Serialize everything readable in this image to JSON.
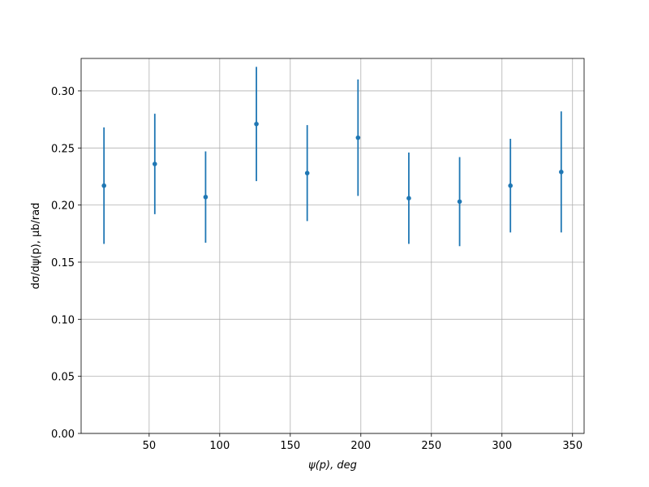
{
  "chart_data": {
    "type": "errorbar",
    "xlabel": "ψ(p), deg",
    "ylabel": "dσ/dψ(p), μb/rad",
    "x": [
      18,
      54,
      90,
      126,
      162,
      198,
      234,
      270,
      306,
      342
    ],
    "series": [
      {
        "color": "#1f77b4",
        "values": [
          0.217,
          0.236,
          0.207,
          0.271,
          0.228,
          0.259,
          0.206,
          0.203,
          0.217,
          0.229
        ],
        "errors": [
          0.051,
          0.044,
          0.04,
          0.05,
          0.042,
          0.051,
          0.04,
          0.039,
          0.041,
          0.053
        ]
      }
    ],
    "xlim": [
      1.8,
      358.2
    ],
    "xticks": [
      50,
      100,
      150,
      200,
      250,
      300,
      350
    ],
    "ylim": [
      0,
      0.3284
    ],
    "yticks": [
      {
        "value": 0,
        "label": "0.00"
      },
      {
        "value": 0.05,
        "label": "0.05"
      },
      {
        "value": 0.1,
        "label": "0.10"
      },
      {
        "value": 0.15,
        "label": "0.15"
      },
      {
        "value": 0.2,
        "label": "0.20"
      },
      {
        "value": 0.25,
        "label": "0.25"
      },
      {
        "value": 0.3,
        "label": "0.30"
      }
    ],
    "grid": true
  }
}
